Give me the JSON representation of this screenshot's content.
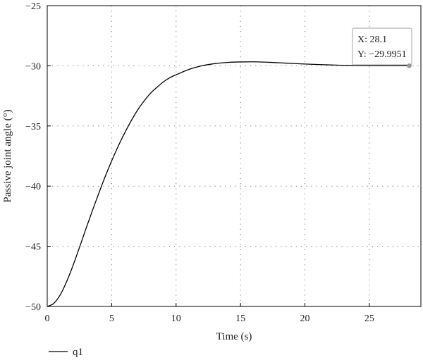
{
  "chart_data": {
    "type": "line",
    "title": "",
    "xlabel": "Time (s)",
    "ylabel": "Passive joint angle (°)",
    "xlim": [
      0,
      29
    ],
    "ylim": [
      -50,
      -25
    ],
    "xticks": [
      0,
      5,
      10,
      15,
      20,
      25
    ],
    "yticks": [
      -50,
      -45,
      -40,
      -35,
      -30,
      -25
    ],
    "xtick_labels": [
      "0",
      "5",
      "10",
      "15",
      "20",
      "25"
    ],
    "ytick_labels": [
      "−50",
      "−45",
      "−40",
      "−35",
      "−30",
      "−25"
    ],
    "grid": true,
    "legend_position": "bottom-left",
    "series": [
      {
        "name": "q1",
        "color": "#000000",
        "x": [
          0,
          0.5,
          1,
          1.5,
          2,
          2.5,
          3,
          3.5,
          4,
          4.5,
          5,
          5.5,
          6,
          6.5,
          7,
          7.5,
          8,
          8.5,
          9,
          9.5,
          10,
          11,
          12,
          13,
          14,
          15,
          16,
          17,
          18,
          19,
          20,
          22,
          24,
          26,
          28.1
        ],
        "y": [
          -50,
          -49.75,
          -49.05,
          -47.95,
          -46.6,
          -45.1,
          -43.55,
          -42.05,
          -40.6,
          -39.2,
          -37.9,
          -36.7,
          -35.6,
          -34.6,
          -33.7,
          -32.95,
          -32.3,
          -31.8,
          -31.35,
          -31.0,
          -30.75,
          -30.3,
          -30.0,
          -29.82,
          -29.72,
          -29.68,
          -29.67,
          -29.7,
          -29.75,
          -29.8,
          -29.85,
          -29.93,
          -29.98,
          -30.0,
          -29.9951
        ]
      }
    ],
    "annotation": {
      "x_label": "X: 28.1",
      "y_label": "Y: −29.9951",
      "x": 28.1,
      "y": -29.9951
    }
  }
}
